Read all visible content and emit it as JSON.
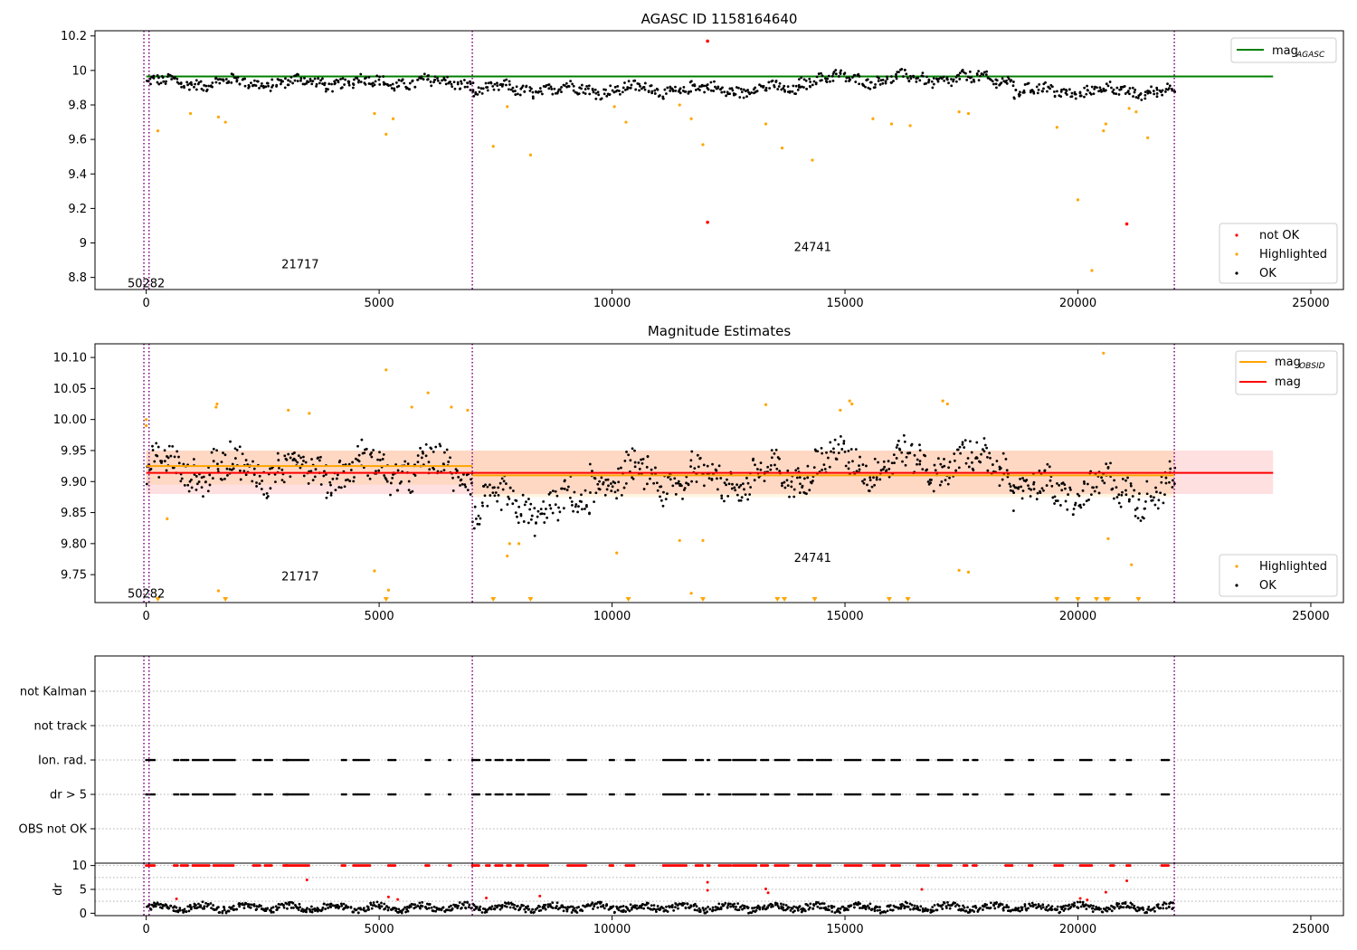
{
  "figure": {
    "title": "AGASC ID 1158164640"
  },
  "chart_data": [
    {
      "type": "scatter",
      "panel": "agasc-magnitude",
      "title": "AGASC ID 1158164640",
      "xlim": [
        -1100,
        25700
      ],
      "ylim": [
        8.73,
        10.23
      ],
      "x_ticks": [
        0,
        5000,
        10000,
        15000,
        20000,
        25000
      ],
      "y_ticks": [
        8.8,
        9.0,
        9.2,
        9.4,
        9.6,
        9.8,
        10.0,
        10.2
      ],
      "grid": false,
      "legend_top": {
        "position": "top-right",
        "entries": [
          "mag"
        ],
        "subscript": "AGASC"
      },
      "legend_bottom": {
        "position": "bottom-right",
        "entries": [
          "not OK",
          "Highlighted",
          "OK"
        ]
      },
      "reference_line": {
        "value": 9.965,
        "x_range": [
          0,
          23200
        ],
        "color": "#008000"
      },
      "obsid_dividers": [
        -50,
        60,
        7000,
        22070
      ],
      "obsid_labels": [
        {
          "text": "50282",
          "x": 0,
          "y": 8.77
        },
        {
          "text": "21717",
          "x": 3500,
          "y": 8.88
        },
        {
          "text": "24741",
          "x": 14500,
          "y": 8.98
        }
      ],
      "ok_band": [
        {
          "x_range": [
            0,
            7000
          ],
          "center": 9.93,
          "spread": 0.06
        },
        {
          "x_range": [
            7000,
            14000
          ],
          "center": 9.89,
          "spread": 0.06
        },
        {
          "x_range": [
            14000,
            18600
          ],
          "center": 9.95,
          "spread": 0.06
        },
        {
          "x_range": [
            18600,
            22070
          ],
          "center": 9.88,
          "spread": 0.06
        }
      ],
      "highlighted_points": {
        "x": [
          250,
          950,
          1550,
          1700,
          4900,
          5150,
          5300,
          7450,
          7750,
          8250,
          10050,
          10300,
          11450,
          11700,
          11950,
          13300,
          13650,
          14300,
          15600,
          16000,
          16400,
          17450,
          17650,
          19550,
          20000,
          20300,
          20550,
          20600,
          21100,
          21250,
          21500
        ],
        "y": [
          9.65,
          9.75,
          9.73,
          9.7,
          9.75,
          9.63,
          9.72,
          9.56,
          9.79,
          9.51,
          9.79,
          9.7,
          9.8,
          9.72,
          9.57,
          9.69,
          9.55,
          9.48,
          9.72,
          9.69,
          9.68,
          9.76,
          9.75,
          9.67,
          9.25,
          8.84,
          9.65,
          9.69,
          9.78,
          9.76,
          9.61
        ],
        "color": "#ffa500"
      },
      "not_ok_points": {
        "x": [
          12050,
          12050,
          21050
        ],
        "y": [
          10.17,
          9.12,
          9.11
        ],
        "color": "#ff0000"
      },
      "ok_color": "#000000"
    },
    {
      "type": "scatter",
      "panel": "magnitude-estimates",
      "title": "Magnitude Estimates",
      "xlim": [
        -1100,
        25700
      ],
      "ylim": [
        9.705,
        10.122
      ],
      "x_ticks": [
        0,
        5000,
        10000,
        15000,
        20000,
        25000
      ],
      "y_ticks": [
        9.75,
        9.8,
        9.85,
        9.9,
        9.95,
        10.0,
        10.05,
        10.1
      ],
      "y_tick_labels": [
        "9.75",
        "9.80",
        "9.85",
        "9.90",
        "9.95",
        "10.00",
        "10.05",
        "10.10"
      ],
      "grid": false,
      "legend_top": {
        "position": "top-right",
        "entries": [
          "mag",
          "mag"
        ],
        "subscript": "OBSID"
      },
      "legend_bottom": {
        "position": "bottom-right",
        "entries": [
          "Highlighted",
          "OK"
        ]
      },
      "mag_line": {
        "value": 9.914,
        "x_range": [
          0,
          23200
        ],
        "color": "#ff0000",
        "band": [
          9.88,
          9.95
        ]
      },
      "obsid_segments": [
        {
          "x_range": [
            0,
            7000
          ],
          "value": 9.925,
          "band": [
            9.895,
            9.95
          ]
        },
        {
          "x_range": [
            7000,
            22070
          ],
          "value": 9.91,
          "band": [
            9.875,
            9.95
          ]
        }
      ],
      "obsid_dividers": [
        -50,
        60,
        7000,
        22070
      ],
      "obsid_labels": [
        {
          "text": "50282",
          "x": 0,
          "y": 9.72
        },
        {
          "text": "21717",
          "x": 3500,
          "y": 9.748
        },
        {
          "text": "24741",
          "x": 14500,
          "y": 9.778
        }
      ],
      "ok_band": [
        {
          "x_range": [
            0,
            7000
          ],
          "center": 9.92,
          "spread": 0.05
        },
        {
          "x_range": [
            7000,
            9500
          ],
          "center": 9.86,
          "spread": 0.05
        },
        {
          "x_range": [
            9500,
            14000
          ],
          "center": 9.905,
          "spread": 0.05
        },
        {
          "x_range": [
            14000,
            18600
          ],
          "center": 9.93,
          "spread": 0.05
        },
        {
          "x_range": [
            18600,
            22070
          ],
          "center": 9.885,
          "spread": 0.05
        }
      ],
      "highlighted_points": {
        "x": [
          0,
          0,
          450,
          1500,
          1520,
          1550,
          3050,
          3500,
          4900,
          5150,
          5200,
          5700,
          6050,
          6550,
          6900,
          7750,
          7800,
          8000,
          10100,
          11450,
          11700,
          11950,
          13300,
          14900,
          15100,
          15150,
          17100,
          17200,
          17450,
          17650,
          20550,
          20650,
          21150
        ],
        "y": [
          10.0,
          9.99,
          9.84,
          10.02,
          10.025,
          9.724,
          10.015,
          10.01,
          9.756,
          10.08,
          9.725,
          10.02,
          10.043,
          10.02,
          10.015,
          9.78,
          9.8,
          9.8,
          9.785,
          9.805,
          9.72,
          9.805,
          10.024,
          10.015,
          10.03,
          10.025,
          10.03,
          10.025,
          9.757,
          9.754,
          10.107,
          9.808,
          9.766
        ],
        "color": "#ffa500"
      },
      "below_range_markers": {
        "x": [
          250,
          1700,
          5150,
          7450,
          8250,
          10350,
          11950,
          13550,
          13700,
          14350,
          15950,
          16350,
          19550,
          20000,
          20400,
          20600,
          20650,
          21300
        ],
        "color": "#ffa500"
      },
      "ok_color": "#000000"
    },
    {
      "type": "scatter",
      "panel": "flags",
      "xlim": [
        -1100,
        25700
      ],
      "categories": [
        "not Kalman",
        "not track",
        "Ion. rad.",
        "dr > 5",
        "OBS not OK"
      ],
      "grid": "horizontal dotted",
      "obsid_dividers": [
        -50,
        60,
        7000,
        22070
      ],
      "flag_clusters": {
        "categories": [
          "Ion. rad.",
          "dr > 5"
        ],
        "x_ranges": [
          [
            0,
            200
          ],
          [
            600,
            700
          ],
          [
            750,
            900
          ],
          [
            1000,
            1350
          ],
          [
            1450,
            1900
          ],
          [
            2300,
            2450
          ],
          [
            2550,
            2700
          ],
          [
            2950,
            3050
          ],
          [
            3000,
            3500
          ],
          [
            4200,
            4300
          ],
          [
            4450,
            4800
          ],
          [
            5200,
            5350
          ],
          [
            6000,
            6100
          ],
          [
            6500,
            6550
          ],
          [
            7000,
            7150
          ],
          [
            7300,
            7400
          ],
          [
            7500,
            7650
          ],
          [
            7750,
            7850
          ],
          [
            7950,
            8100
          ],
          [
            8200,
            8650
          ],
          [
            9050,
            9450
          ],
          [
            9950,
            10050
          ],
          [
            10300,
            10500
          ],
          [
            11100,
            11600
          ],
          [
            11800,
            11950
          ],
          [
            12050,
            12100
          ],
          [
            12300,
            12550
          ],
          [
            12600,
            13100
          ],
          [
            13200,
            13350
          ],
          [
            13500,
            13800
          ],
          [
            14000,
            14300
          ],
          [
            14400,
            14700
          ],
          [
            15000,
            15350
          ],
          [
            15600,
            15850
          ],
          [
            16000,
            16200
          ],
          [
            16550,
            16800
          ],
          [
            17000,
            17300
          ],
          [
            17550,
            17650
          ],
          [
            17750,
            17850
          ],
          [
            18450,
            18600
          ],
          [
            18950,
            19050
          ],
          [
            19500,
            19700
          ],
          [
            20050,
            20300
          ],
          [
            20700,
            20800
          ],
          [
            21050,
            21150
          ],
          [
            21800,
            21950
          ]
        ]
      },
      "point_color": "#000000"
    },
    {
      "type": "scatter",
      "panel": "dr",
      "ylabel": "dr",
      "xlim": [
        -1100,
        25700
      ],
      "ylim": [
        -0.5,
        10.5
      ],
      "x_ticks": [
        0,
        5000,
        10000,
        15000,
        20000,
        25000
      ],
      "y_ticks": [
        0,
        5,
        10
      ],
      "grid": "horizontal dotted",
      "obsid_dividers": [
        -50,
        60,
        7000,
        22070
      ],
      "ok_band": {
        "x_range": [
          0,
          22070
        ],
        "center": 1.2,
        "spread": 1.4,
        "color": "#000000"
      },
      "clipped_points": {
        "value": 10,
        "x_ranges_from_panel": "flags",
        "color": "#ff0000"
      },
      "not_ok_points": {
        "x": [
          650,
          3450,
          5200,
          5400,
          7300,
          8450,
          12050,
          12050,
          13300,
          13350,
          16650,
          20050,
          20200,
          20600,
          21050
        ],
        "y": [
          3.0,
          7.0,
          3.4,
          2.9,
          3.2,
          3.6,
          6.5,
          4.8,
          5.1,
          4.3,
          5.0,
          3.1,
          2.8,
          4.4,
          6.8
        ],
        "color": "#ff0000"
      }
    }
  ]
}
